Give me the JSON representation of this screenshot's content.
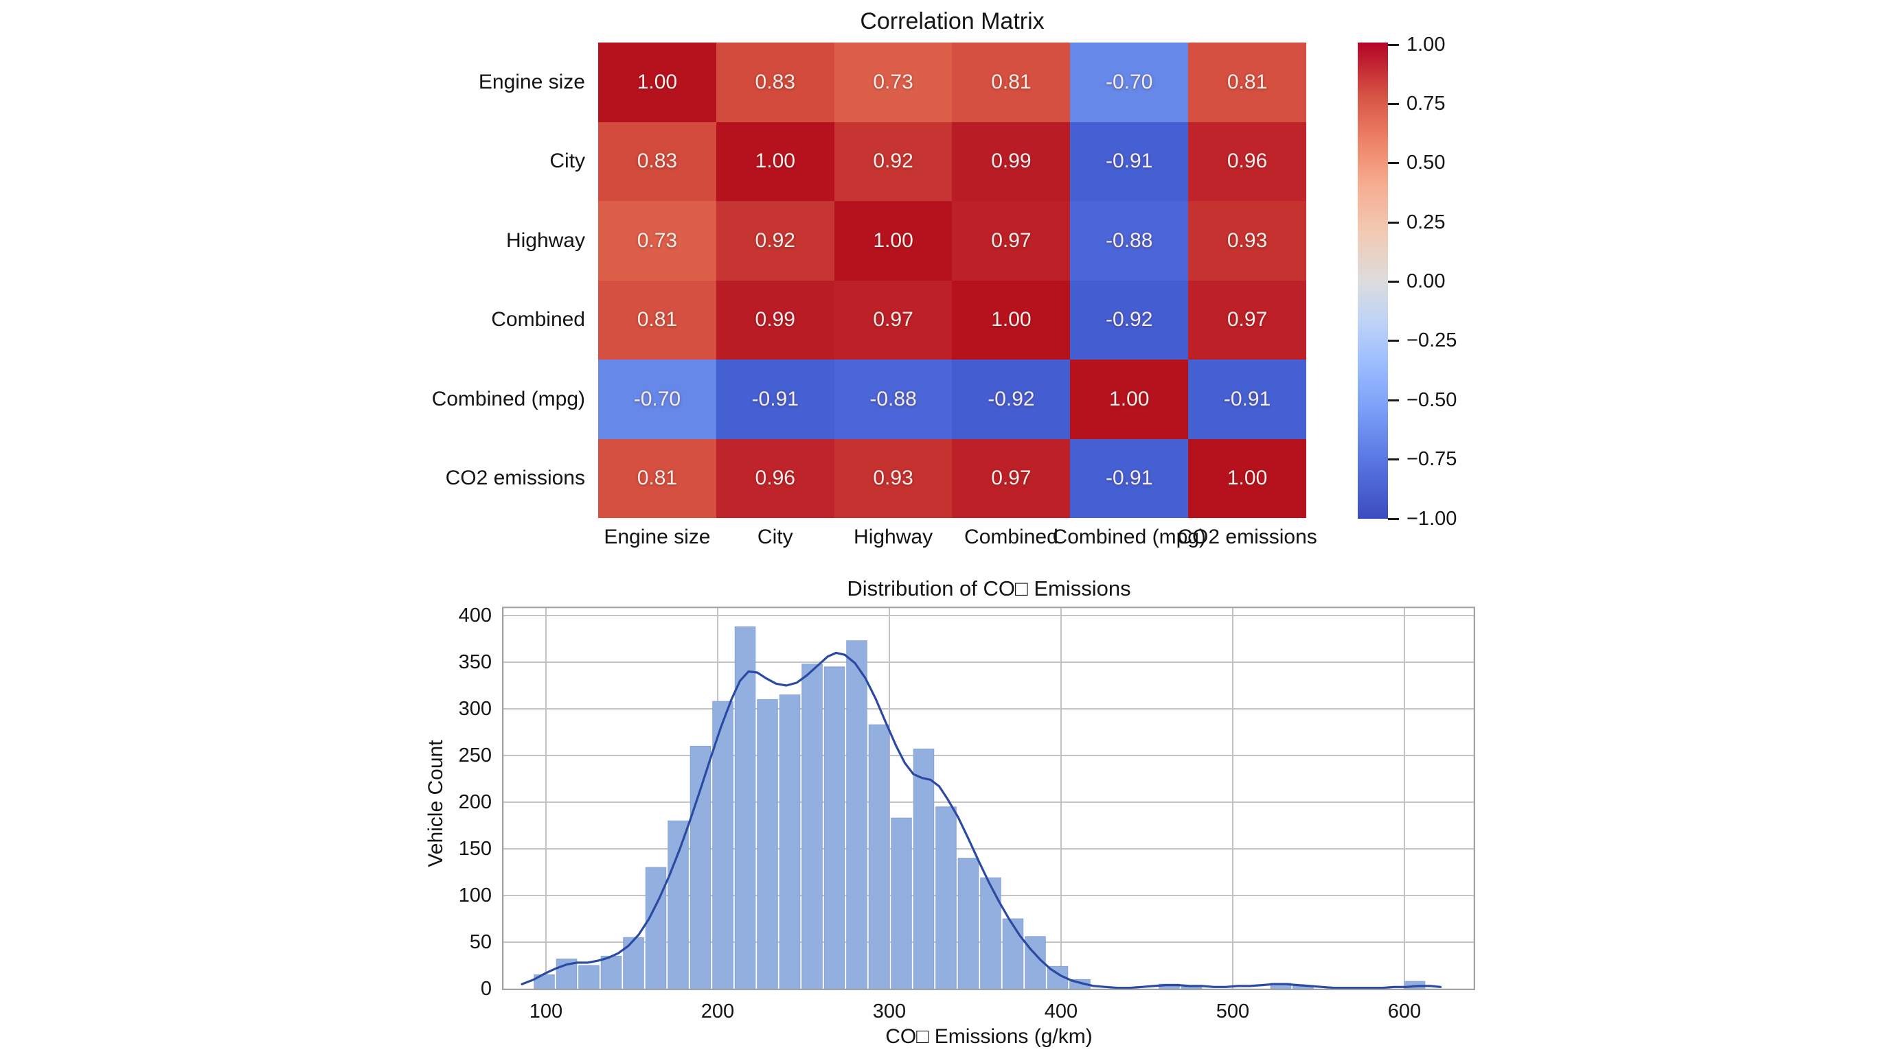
{
  "figure": {
    "background": "#ffffff"
  },
  "chart_data": [
    {
      "type": "heatmap",
      "title": "Correlation Matrix",
      "categories": [
        "Engine size",
        "City",
        "Highway",
        "Combined",
        "Combined (mpg)",
        "CO2 emissions"
      ],
      "matrix": [
        [
          1.0,
          0.83,
          0.73,
          0.81,
          -0.7,
          0.81
        ],
        [
          0.83,
          1.0,
          0.92,
          0.99,
          -0.91,
          0.96
        ],
        [
          0.73,
          0.92,
          1.0,
          0.97,
          -0.88,
          0.93
        ],
        [
          0.81,
          0.99,
          0.97,
          1.0,
          -0.92,
          0.97
        ],
        [
          -0.7,
          -0.91,
          -0.88,
          -0.92,
          1.0,
          -0.91
        ],
        [
          0.81,
          0.96,
          0.93,
          0.97,
          -0.91,
          1.0
        ]
      ],
      "vmin": -1.0,
      "vmax": 1.0,
      "colormap": "coolwarm",
      "value_text_color": "#f3eeea",
      "cell_colors": {
        "1.00": "#b6121e",
        "0.99": "#ba1c26",
        "0.97": "#bd2027",
        "0.96": "#bf242a",
        "0.93": "#c5322f",
        "0.92": "#c63531",
        "0.83": "#d24b3c",
        "0.81": "#d55040",
        "0.73": "#dc5f4a",
        "-0.70": "#6688e8",
        "-0.88": "#4b66d8",
        "-0.91": "#4560d3",
        "-0.92": "#445ed2"
      },
      "colorbar": {
        "ticks": [
          "1.00",
          "0.75",
          "0.50",
          "0.25",
          "0.00",
          "−0.25",
          "−0.50",
          "−0.75",
          "−1.00"
        ],
        "gradient_bottom_to_top": [
          "#3b4cc0 0%",
          "#5572df 11%",
          "#7b9ff9 23%",
          "#9ebeff 33%",
          "#c0d4f5 42%",
          "#dddcdc 50%",
          "#f2cab5 60%",
          "#f7ad90 70%",
          "#ee8468 79%",
          "#d65244 89%",
          "#b40426 100%"
        ]
      }
    },
    {
      "type": "histogram",
      "title": "Distribution of CO□ Emissions",
      "xlabel": "CO□ Emissions (g/km)",
      "ylabel": "Vehicle Count",
      "bin_width": 13,
      "bins": {
        "centers": [
          99,
          112,
          125,
          138,
          151,
          164,
          177,
          190,
          203,
          216,
          229,
          242,
          255,
          268,
          281,
          294,
          307,
          320,
          333,
          346,
          359,
          372,
          385,
          398,
          411,
          463,
          476,
          528,
          541,
          606
        ],
        "counts": [
          15,
          32,
          25,
          35,
          55,
          130,
          180,
          260,
          308,
          388,
          310,
          315,
          348,
          345,
          373,
          283,
          183,
          257,
          195,
          140,
          119,
          75,
          56,
          24,
          10,
          5,
          2,
          6,
          3,
          8
        ]
      },
      "kde_curve": [
        [
          86,
          5
        ],
        [
          93,
          10
        ],
        [
          100,
          17
        ],
        [
          106,
          22
        ],
        [
          112,
          26
        ],
        [
          118,
          28
        ],
        [
          124,
          28
        ],
        [
          130,
          30
        ],
        [
          136,
          33
        ],
        [
          142,
          38
        ],
        [
          148,
          46
        ],
        [
          154,
          58
        ],
        [
          160,
          75
        ],
        [
          166,
          97
        ],
        [
          172,
          122
        ],
        [
          178,
          150
        ],
        [
          184,
          181
        ],
        [
          190,
          214
        ],
        [
          196,
          248
        ],
        [
          202,
          281
        ],
        [
          208,
          310
        ],
        [
          213,
          330
        ],
        [
          218,
          340
        ],
        [
          223,
          339
        ],
        [
          228,
          333
        ],
        [
          234,
          327
        ],
        [
          240,
          325
        ],
        [
          246,
          328
        ],
        [
          252,
          336
        ],
        [
          258,
          346
        ],
        [
          264,
          356
        ],
        [
          269,
          360
        ],
        [
          274,
          358
        ],
        [
          280,
          349
        ],
        [
          286,
          333
        ],
        [
          292,
          311
        ],
        [
          298,
          285
        ],
        [
          304,
          260
        ],
        [
          309,
          242
        ],
        [
          314,
          230
        ],
        [
          319,
          226
        ],
        [
          324,
          224
        ],
        [
          329,
          217
        ],
        [
          334,
          203
        ],
        [
          340,
          184
        ],
        [
          346,
          161
        ],
        [
          352,
          137
        ],
        [
          358,
          114
        ],
        [
          364,
          93
        ],
        [
          370,
          74
        ],
        [
          376,
          57
        ],
        [
          382,
          43
        ],
        [
          388,
          31
        ],
        [
          394,
          21
        ],
        [
          400,
          14
        ],
        [
          406,
          9
        ],
        [
          412,
          6
        ],
        [
          419,
          3
        ],
        [
          426,
          2
        ],
        [
          433,
          1
        ],
        [
          440,
          1
        ],
        [
          447,
          2
        ],
        [
          454,
          3
        ],
        [
          461,
          4
        ],
        [
          468,
          4
        ],
        [
          475,
          3
        ],
        [
          482,
          3
        ],
        [
          489,
          2
        ],
        [
          496,
          2
        ],
        [
          503,
          3
        ],
        [
          510,
          3
        ],
        [
          517,
          4
        ],
        [
          524,
          5
        ],
        [
          531,
          5
        ],
        [
          538,
          4
        ],
        [
          545,
          3
        ],
        [
          552,
          2
        ],
        [
          559,
          1
        ],
        [
          566,
          1
        ],
        [
          573,
          1
        ],
        [
          580,
          1
        ],
        [
          587,
          1
        ],
        [
          594,
          2
        ],
        [
          601,
          2
        ],
        [
          608,
          3
        ],
        [
          615,
          3
        ],
        [
          621,
          2
        ]
      ],
      "xticks": [
        100,
        200,
        300,
        400,
        500,
        600
      ],
      "yticks": [
        0,
        50,
        100,
        150,
        200,
        250,
        300,
        350,
        400
      ],
      "xlim": [
        74.4,
        641.2
      ],
      "ylim": [
        0,
        409.6
      ],
      "grid": true,
      "bar_color": "#93afdf",
      "bar_edge_color": "#86a3d6",
      "kde_color": "#2b4aa2",
      "grid_color": "#c3c3c3",
      "spine_color": "#a3a3a3"
    }
  ]
}
